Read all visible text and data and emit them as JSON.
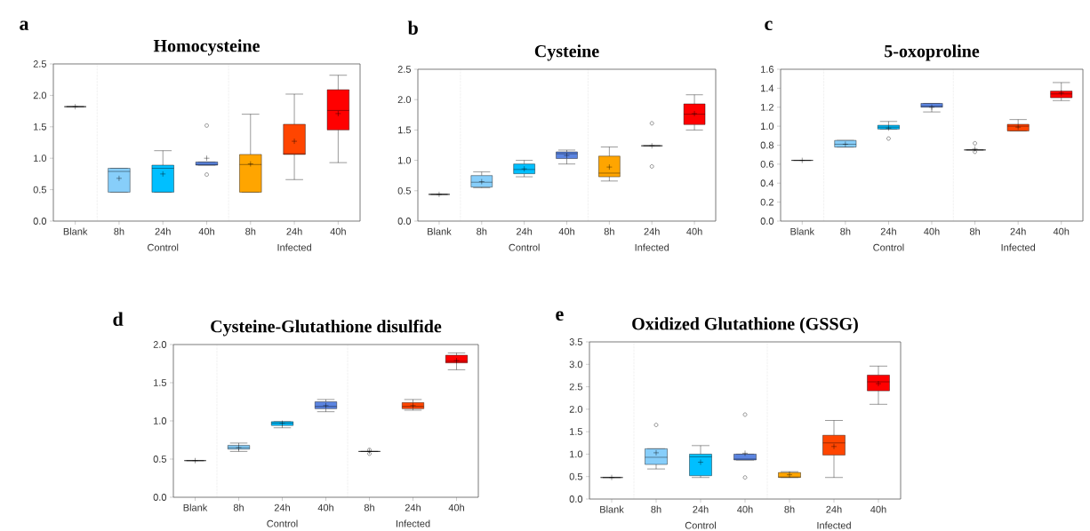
{
  "chart_data": [
    {
      "type": "box",
      "title": "Homocysteine",
      "annotations": [
        "a",
        "Control",
        "Infected"
      ],
      "categories": [
        "Blank",
        "8h",
        "24h",
        "40h",
        "8h",
        "24h",
        "40h"
      ],
      "colors": [
        null,
        "#87cefa",
        "#00bfff",
        "#5b84e0",
        "#ffa500",
        "#ff4500",
        "#ff0000"
      ],
      "ylim": [
        0.0,
        2.5
      ],
      "yticks": [
        {
          "value": 0.0,
          "label": "0.0"
        },
        {
          "value": 0.5,
          "label": "0.5"
        },
        {
          "value": 1.0,
          "label": "1.0"
        },
        {
          "value": 1.5,
          "label": "1.5"
        },
        {
          "value": 2.0,
          "label": "2.0"
        },
        {
          "value": 2.5,
          "label": "2.5"
        }
      ],
      "boxes": [
        {
          "low": 1.82,
          "q1": 1.82,
          "median": 1.82,
          "q3": 1.82,
          "high": 1.82,
          "mean": 1.82
        },
        {
          "low": 0.46,
          "q1": 0.46,
          "median": 0.79,
          "q3": 0.84,
          "high": 0.84,
          "mean": 0.68
        },
        {
          "low": 0.46,
          "q1": 0.46,
          "median": 0.84,
          "q3": 0.89,
          "high": 1.12,
          "mean": 0.75
        },
        {
          "low": 0.89,
          "q1": 0.89,
          "median": 0.9,
          "q3": 0.94,
          "high": 0.94,
          "mean": 1.0,
          "outliers": [
            1.52,
            0.74
          ]
        },
        {
          "low": 0.46,
          "q1": 0.46,
          "median": 0.9,
          "q3": 1.06,
          "high": 1.7,
          "mean": 0.91
        },
        {
          "low": 0.66,
          "q1": 1.06,
          "median": 1.07,
          "q3": 1.54,
          "high": 2.02,
          "mean": 1.27
        },
        {
          "low": 0.93,
          "q1": 1.45,
          "median": 1.76,
          "q3": 2.09,
          "high": 2.32,
          "mean": 1.71
        }
      ]
    },
    {
      "type": "box",
      "title": "Cysteine",
      "annotations": [
        "b",
        "Control",
        "Infected"
      ],
      "categories": [
        "Blank",
        "8h",
        "24h",
        "40h",
        "8h",
        "24h",
        "40h"
      ],
      "colors": [
        null,
        "#87cefa",
        "#00bfff",
        "#5b84e0",
        "#ffa500",
        null,
        "#ff0000"
      ],
      "ylim": [
        0.0,
        2.5
      ],
      "yticks": [
        {
          "value": 0.0,
          "label": "0.0"
        },
        {
          "value": 0.5,
          "label": "0.5"
        },
        {
          "value": 1.0,
          "label": "1.0"
        },
        {
          "value": 1.5,
          "label": "1.5"
        },
        {
          "value": 2.0,
          "label": "2.0"
        },
        {
          "value": 2.5,
          "label": "2.5"
        }
      ],
      "boxes": [
        {
          "low": 0.44,
          "q1": 0.44,
          "median": 0.44,
          "q3": 0.44,
          "high": 0.44,
          "mean": 0.44
        },
        {
          "low": 0.55,
          "q1": 0.56,
          "median": 0.64,
          "q3": 0.75,
          "high": 0.81,
          "mean": 0.65
        },
        {
          "low": 0.73,
          "q1": 0.78,
          "median": 0.85,
          "q3": 0.94,
          "high": 1.0,
          "mean": 0.86
        },
        {
          "low": 0.94,
          "q1": 1.03,
          "median": 1.11,
          "q3": 1.14,
          "high": 1.17,
          "mean": 1.08
        },
        {
          "low": 0.66,
          "q1": 0.73,
          "median": 0.79,
          "q3": 1.07,
          "high": 1.22,
          "mean": 0.89
        },
        {
          "low": 1.24,
          "q1": 1.24,
          "median": 1.24,
          "q3": 1.24,
          "high": 1.24,
          "mean": 1.24,
          "outliers": [
            1.61,
            0.9
          ]
        },
        {
          "low": 1.5,
          "q1": 1.59,
          "median": 1.76,
          "q3": 1.93,
          "high": 2.08,
          "mean": 1.77
        }
      ]
    },
    {
      "type": "box",
      "title": "5-oxoproline",
      "annotations": [
        "c",
        "Control",
        "Infected"
      ],
      "categories": [
        "Blank",
        "8h",
        "24h",
        "40h",
        "8h",
        "24h",
        "40h"
      ],
      "colors": [
        null,
        "#87cefa",
        "#00bfff",
        "#5b84e0",
        null,
        "#ff4500",
        "#ff0000"
      ],
      "ylim": [
        0.0,
        1.6
      ],
      "yticks": [
        {
          "value": 0.0,
          "label": "0.0"
        },
        {
          "value": 0.2,
          "label": "0.2"
        },
        {
          "value": 0.4,
          "label": "0.4"
        },
        {
          "value": 0.6,
          "label": "0.6"
        },
        {
          "value": 0.8,
          "label": "0.8"
        },
        {
          "value": 1.0,
          "label": "1.0"
        },
        {
          "value": 1.2,
          "label": "1.2"
        },
        {
          "value": 1.4,
          "label": "1.4"
        },
        {
          "value": 1.6,
          "label": "1.6"
        }
      ],
      "boxes": [
        {
          "low": 0.64,
          "q1": 0.64,
          "median": 0.64,
          "q3": 0.64,
          "high": 0.64,
          "mean": 0.64
        },
        {
          "low": 0.78,
          "q1": 0.78,
          "median": 0.81,
          "q3": 0.85,
          "high": 0.85,
          "mean": 0.81
        },
        {
          "low": 0.97,
          "q1": 0.97,
          "median": 0.99,
          "q3": 1.01,
          "high": 1.05,
          "mean": 0.98,
          "outliers": [
            0.87
          ]
        },
        {
          "low": 1.15,
          "q1": 1.2,
          "median": 1.21,
          "q3": 1.24,
          "high": 1.24,
          "mean": 1.2
        },
        {
          "low": 0.75,
          "q1": 0.75,
          "median": 0.75,
          "q3": 0.75,
          "high": 0.75,
          "mean": 0.76,
          "outliers": [
            0.82,
            0.73
          ]
        },
        {
          "low": 0.95,
          "q1": 0.95,
          "median": 1.0,
          "q3": 1.02,
          "high": 1.07,
          "mean": 0.99
        },
        {
          "low": 1.27,
          "q1": 1.3,
          "median": 1.34,
          "q3": 1.37,
          "high": 1.46,
          "mean": 1.35
        }
      ]
    },
    {
      "type": "box",
      "title": "Cysteine-Glutathione disulfide",
      "annotations": [
        "d",
        "Control",
        "Infected"
      ],
      "categories": [
        "Blank",
        "8h",
        "24h",
        "40h",
        "8h",
        "24h",
        "40h"
      ],
      "colors": [
        null,
        "#87cefa",
        "#00bfff",
        "#5b84e0",
        null,
        "#ff4500",
        "#ff0000"
      ],
      "ylim": [
        0.0,
        2.0
      ],
      "yticks": [
        {
          "value": 0.0,
          "label": "0.0"
        },
        {
          "value": 0.5,
          "label": "0.5"
        },
        {
          "value": 1.0,
          "label": "1.0"
        },
        {
          "value": 1.5,
          "label": "1.5"
        },
        {
          "value": 2.0,
          "label": "2.0"
        }
      ],
      "boxes": [
        {
          "low": 0.48,
          "q1": 0.48,
          "median": 0.48,
          "q3": 0.48,
          "high": 0.48,
          "mean": 0.48
        },
        {
          "low": 0.6,
          "q1": 0.63,
          "median": 0.65,
          "q3": 0.68,
          "high": 0.71,
          "mean": 0.65
        },
        {
          "low": 0.91,
          "q1": 0.94,
          "median": 0.97,
          "q3": 0.99,
          "high": 0.99,
          "mean": 0.97
        },
        {
          "low": 1.12,
          "q1": 1.16,
          "median": 1.19,
          "q3": 1.25,
          "high": 1.28,
          "mean": 1.2
        },
        {
          "low": 0.6,
          "q1": 0.6,
          "median": 0.6,
          "q3": 0.6,
          "high": 0.6,
          "mean": 0.6,
          "outliers": [
            0.62,
            0.57
          ]
        },
        {
          "low": 1.14,
          "q1": 1.16,
          "median": 1.19,
          "q3": 1.24,
          "high": 1.28,
          "mean": 1.2
        },
        {
          "low": 1.67,
          "q1": 1.76,
          "median": 1.78,
          "q3": 1.86,
          "high": 1.89,
          "mean": 1.79
        }
      ]
    },
    {
      "type": "box",
      "title": "Oxidized Glutathione (GSSG)",
      "annotations": [
        "e",
        "Control",
        "Infected"
      ],
      "categories": [
        "Blank",
        "8h",
        "24h",
        "40h",
        "8h",
        "24h",
        "40h"
      ],
      "colors": [
        null,
        "#87cefa",
        "#00bfff",
        "#5b84e0",
        "#ffa500",
        "#ff4500",
        "#ff0000"
      ],
      "ylim": [
        0.0,
        3.5
      ],
      "yticks": [
        {
          "value": 0.0,
          "label": "0.0"
        },
        {
          "value": 0.5,
          "label": "0.5"
        },
        {
          "value": 1.0,
          "label": "1.0"
        },
        {
          "value": 1.5,
          "label": "1.5"
        },
        {
          "value": 2.0,
          "label": "2.0"
        },
        {
          "value": 2.5,
          "label": "2.5"
        },
        {
          "value": 3.0,
          "label": "3.0"
        },
        {
          "value": 3.5,
          "label": "3.5"
        }
      ],
      "boxes": [
        {
          "low": 0.48,
          "q1": 0.48,
          "median": 0.48,
          "q3": 0.48,
          "high": 0.48,
          "mean": 0.48
        },
        {
          "low": 0.67,
          "q1": 0.77,
          "median": 0.93,
          "q3": 1.12,
          "high": 1.12,
          "mean": 1.03,
          "outliers": [
            1.65
          ]
        },
        {
          "low": 0.48,
          "q1": 0.52,
          "median": 0.94,
          "q3": 1.0,
          "high": 1.19,
          "mean": 0.82
        },
        {
          "low": 0.87,
          "q1": 0.87,
          "median": 0.89,
          "q3": 1.0,
          "high": 1.0,
          "mean": 1.02,
          "outliers": [
            1.88,
            0.48
          ]
        },
        {
          "low": 0.48,
          "q1": 0.48,
          "median": 0.49,
          "q3": 0.59,
          "high": 0.61,
          "mean": 0.54
        },
        {
          "low": 0.48,
          "q1": 0.98,
          "median": 1.25,
          "q3": 1.42,
          "high": 1.75,
          "mean": 1.17
        },
        {
          "low": 2.11,
          "q1": 2.41,
          "median": 2.61,
          "q3": 2.76,
          "high": 2.96,
          "mean": 2.57
        }
      ]
    }
  ]
}
